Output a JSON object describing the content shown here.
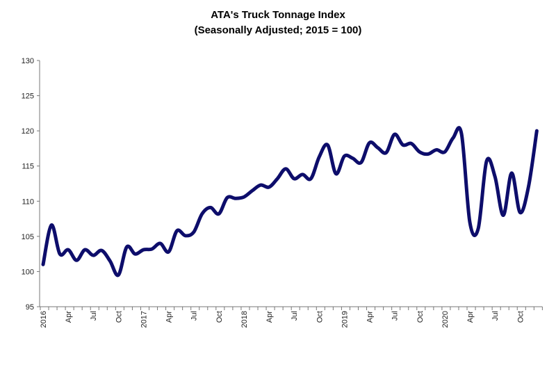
{
  "chart_data": {
    "type": "line",
    "title": "ATA's Truck Tonnage Index",
    "subtitle": "(Seasonally Adjusted; 2015 = 100)",
    "xlabel": "",
    "ylabel": "",
    "ylim": [
      95,
      130
    ],
    "yticks": [
      95,
      100,
      105,
      110,
      115,
      120,
      125,
      130
    ],
    "xtick_labels": [
      "2016",
      "Apr",
      "Jul",
      "Oct",
      "2017",
      "Apr",
      "Jul",
      "Oct",
      "2018",
      "Apr",
      "Jul",
      "Oct",
      "2019",
      "Apr",
      "Jul",
      "Oct",
      "2020",
      "Apr",
      "Jul",
      "Oct"
    ],
    "grid": false,
    "line_color": "#0d0d6b",
    "x": [
      "2016-01",
      "2016-02",
      "2016-03",
      "2016-04",
      "2016-05",
      "2016-06",
      "2016-07",
      "2016-08",
      "2016-09",
      "2016-10",
      "2016-11",
      "2016-12",
      "2017-01",
      "2017-02",
      "2017-03",
      "2017-04",
      "2017-05",
      "2017-06",
      "2017-07",
      "2017-08",
      "2017-09",
      "2017-10",
      "2017-11",
      "2017-12",
      "2018-01",
      "2018-02",
      "2018-03",
      "2018-04",
      "2018-05",
      "2018-06",
      "2018-07",
      "2018-08",
      "2018-09",
      "2018-10",
      "2018-11",
      "2018-12",
      "2019-01",
      "2019-02",
      "2019-03",
      "2019-04",
      "2019-05",
      "2019-06",
      "2019-07",
      "2019-08",
      "2019-09",
      "2019-10",
      "2019-11",
      "2019-12",
      "2020-01",
      "2020-02",
      "2020-03",
      "2020-04",
      "2020-05",
      "2020-06",
      "2020-07",
      "2020-08",
      "2020-09",
      "2020-10",
      "2020-11",
      "2020-12"
    ],
    "values": [
      101.0,
      106.6,
      102.5,
      103.1,
      101.6,
      103.1,
      102.3,
      103.0,
      101.5,
      99.5,
      103.5,
      102.5,
      103.1,
      103.2,
      104.0,
      102.8,
      105.8,
      105.1,
      105.6,
      108.2,
      109.1,
      108.2,
      110.5,
      110.4,
      110.6,
      111.5,
      112.3,
      112.0,
      113.2,
      114.6,
      113.2,
      113.8,
      113.2,
      116.3,
      118.0,
      113.9,
      116.4,
      116.1,
      115.5,
      118.3,
      117.6,
      116.9,
      119.5,
      118.0,
      118.2,
      117.0,
      116.7,
      117.3,
      117.0,
      119.0,
      119.6,
      107.0,
      106.1,
      115.7,
      113.5,
      108.0,
      114.0,
      108.4,
      112.0,
      120.0
    ]
  }
}
